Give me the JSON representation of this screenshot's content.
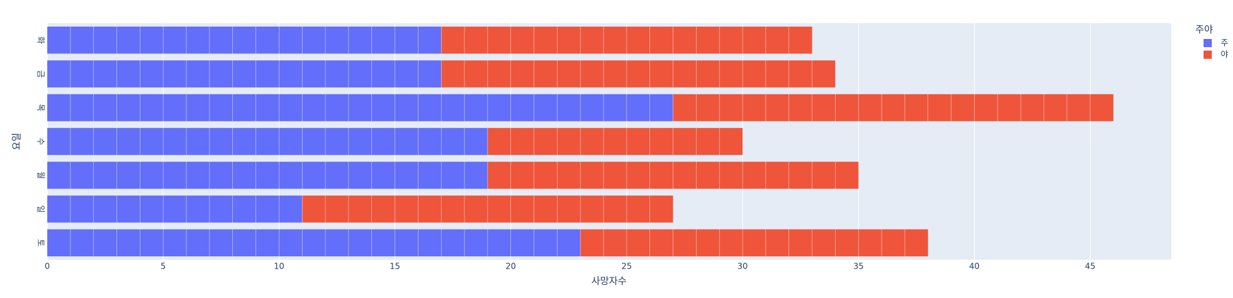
{
  "chart_data": {
    "type": "bar",
    "orientation": "horizontal",
    "stacked": true,
    "x_label": "사망자수",
    "y_label": "요일",
    "legend_title": "주야",
    "legend_position": "right",
    "categories": [
      "토",
      "일",
      "월",
      "수",
      "목",
      "금",
      "화"
    ],
    "series": [
      {
        "name": "주",
        "color": "#636efa",
        "values": [
          23,
          11,
          19,
          19,
          27,
          17,
          17
        ]
      },
      {
        "name": "야",
        "color": "#EF553B",
        "values": [
          15,
          16,
          16,
          11,
          19,
          17,
          16
        ]
      }
    ],
    "xlim": [
      0,
      48.5
    ],
    "xticks": [
      0,
      5,
      10,
      15,
      20,
      25,
      30,
      35,
      40,
      45
    ],
    "grid": true
  }
}
